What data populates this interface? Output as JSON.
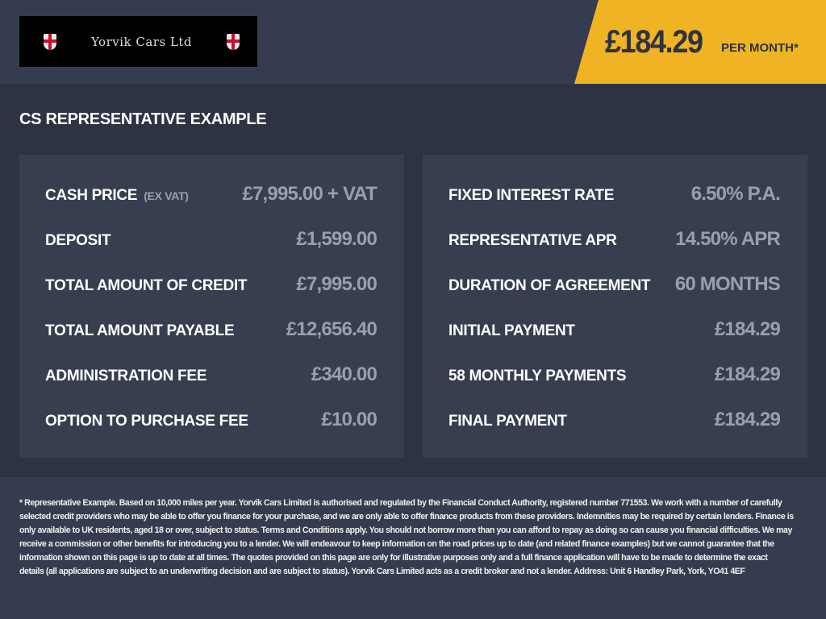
{
  "logo": {
    "text": "Yorvik Cars Ltd"
  },
  "header": {
    "price": "£184.29",
    "per_month": "PER MONTH*"
  },
  "title": "CS REPRESENTATIVE EXAMPLE",
  "left": [
    {
      "label": "CASH PRICE",
      "sub": "(EX VAT)",
      "value": "£7,995.00 + VAT"
    },
    {
      "label": "DEPOSIT",
      "value": "£1,599.00"
    },
    {
      "label": "TOTAL AMOUNT OF CREDIT",
      "value": "£7,995.00"
    },
    {
      "label": "TOTAL AMOUNT PAYABLE",
      "value": "£12,656.40"
    },
    {
      "label": "ADMINISTRATION FEE",
      "value": "£340.00"
    },
    {
      "label": "OPTION TO PURCHASE FEE",
      "value": "£10.00"
    }
  ],
  "right": [
    {
      "label": "FIXED INTEREST RATE",
      "value": "6.50% P.A."
    },
    {
      "label": "REPRESENTATIVE APR",
      "value": "14.50% APR"
    },
    {
      "label": "DURATION OF AGREEMENT",
      "value": "60 MONTHS"
    },
    {
      "label": "INITIAL PAYMENT",
      "value": "£184.29"
    },
    {
      "label": "58 MONTHLY PAYMENTS",
      "value": "£184.29"
    },
    {
      "label": "FINAL PAYMENT",
      "value": "£184.29"
    }
  ],
  "footer": [
    "* Representative Example. Based on 10,000 miles per year. Yorvik Cars Limited is authorised and regulated by the Financial Conduct Authority, registered number 771553. We work with a number of carefully",
    "selected credit providers who may be able to offer you finance for your purchase, and we are only able to offer finance products from these providers. Indemnities may be required by certain lenders. Finance is",
    "only available to UK residents, aged 18 or over, subject to status. Terms and Conditions apply. You should not borrow more than you can afford to repay as doing so can cause you financial difficulties. We may",
    "receive a commission or other benefits for introducing you to a lender. We will endeavour to keep information on the road prices up to date (and related finance examples) but we cannot guarantee that the",
    "information shown on this page is up to date at all times. The quotes provided on this page are only for illustrative purposes only and a full finance application will have to be made to determine the exact",
    "details (all applications are subject to an underwriting decision and are subject to status). Yorvik Cars Limited acts as a credit broker and not a lender. Address: Unit 6 Handley Park, York, YO41 4EF"
  ],
  "colors": {
    "accent": "#f0b323",
    "background": "#2e3341",
    "panel": "#373e50",
    "value": "#9aa0ab"
  }
}
